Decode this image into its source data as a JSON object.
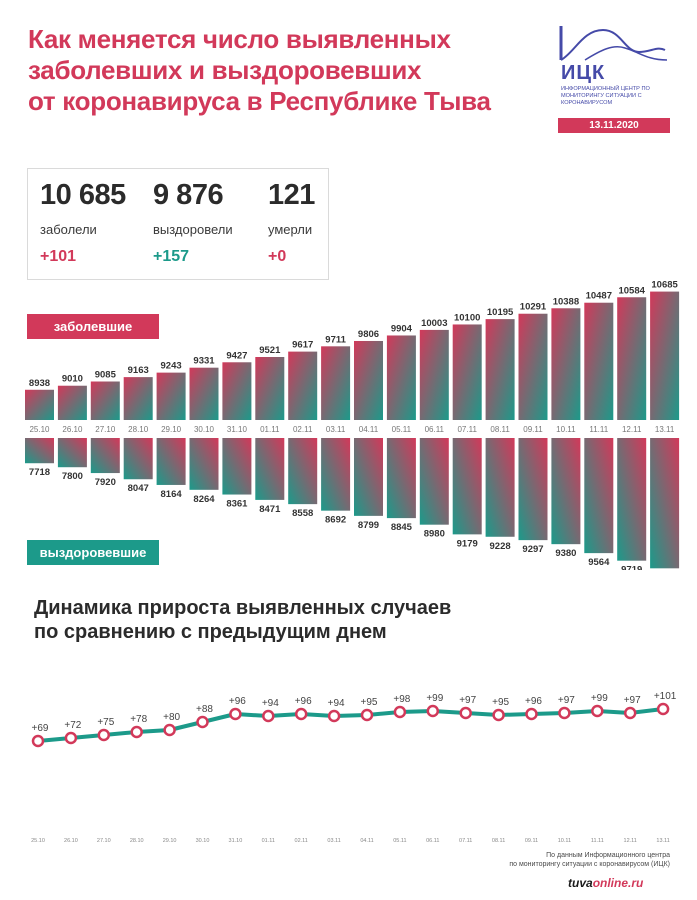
{
  "header": {
    "title": "Как меняется число выявленных\nзаболевших и выздоровевших\nот коронавируса в Республике Тыва"
  },
  "logo": {
    "name": "ИЦК",
    "subtitle": "ИНФОРМАЦИОННЫЙ ЦЕНТР ПО МОНИТОРИНГУ СИТУАЦИИ С КОРОНАВИРУСОМ",
    "date": "13.11.2020"
  },
  "stats": {
    "sick": {
      "value": "10 685",
      "label": "заболели",
      "delta": "+101"
    },
    "recovered": {
      "value": "9 876",
      "label": "выздоровели",
      "delta": "+157"
    },
    "died": {
      "value": "121",
      "label": "умерли",
      "delta": "+0"
    }
  },
  "legend": {
    "sick_label": "заболевшие",
    "recovered_label": "выздоровевшие"
  },
  "subtitle": "Динамика прироста выявленных случаев\nпо сравнению с предыдущим днем",
  "source": "По данным Информационного центра\nпо мониторингу ситуации с коронавирусом (ИЦК)",
  "watermark": {
    "main": "tuva",
    "accent": "online.ru"
  },
  "colors": {
    "accent": "#d2395a",
    "teal": "#1c9a8a",
    "blue": "#454aa8"
  },
  "chart_data": [
    {
      "type": "bar",
      "categories": [
        "25.10",
        "26.10",
        "27.10",
        "28.10",
        "29.10",
        "30.10",
        "31.10",
        "01.11",
        "02.11",
        "03.11",
        "04.11",
        "05.11",
        "06.11",
        "07.11",
        "08.11",
        "09.11",
        "10.11",
        "11.11",
        "12.11",
        "13.11"
      ],
      "series": [
        {
          "name": "заболевшие",
          "values": [
            8938,
            9010,
            9085,
            9163,
            9243,
            9331,
            9427,
            9521,
            9617,
            9711,
            9806,
            9904,
            10003,
            10100,
            10195,
            10291,
            10388,
            10487,
            10584,
            10685
          ]
        },
        {
          "name": "выздоровевшие",
          "values": [
            7718,
            7800,
            7920,
            8047,
            8164,
            8264,
            8361,
            8471,
            8558,
            8692,
            8799,
            8845,
            8980,
            9179,
            9228,
            9297,
            9380,
            9564,
            9719,
            9876
          ]
        }
      ]
    },
    {
      "type": "line",
      "x": [
        "25.10",
        "26.10",
        "27.10",
        "28.10",
        "29.10",
        "30.10",
        "31.10",
        "01.11",
        "02.11",
        "03.11",
        "04.11",
        "05.11",
        "06.11",
        "07.11",
        "08.11",
        "09.11",
        "10.11",
        "11.11",
        "12.11",
        "13.11"
      ],
      "values": [
        69,
        72,
        75,
        78,
        80,
        88,
        96,
        94,
        96,
        94,
        95,
        98,
        99,
        97,
        95,
        96,
        97,
        99,
        97,
        101
      ],
      "labels": [
        "+69",
        "+72",
        "+75",
        "+78",
        "+80",
        "+88",
        "+96",
        "+94",
        "+96",
        "+94",
        "+95",
        "+98",
        "+99",
        "+97",
        "+95",
        "+96",
        "+97",
        "+99",
        "+97",
        "+101"
      ]
    }
  ]
}
